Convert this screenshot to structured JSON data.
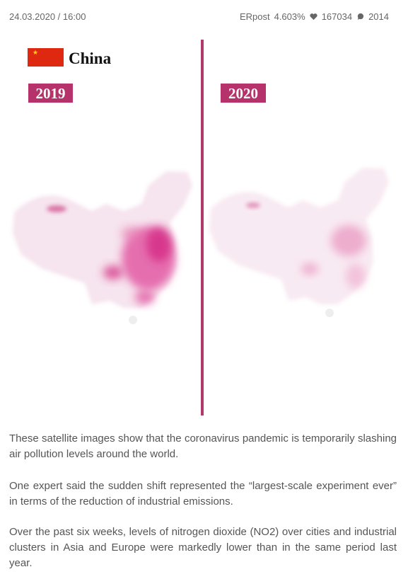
{
  "header": {
    "date": "24.03.2020 / 16:00",
    "source": "ERpost",
    "rate": "4.603%",
    "likes": "167034",
    "comments": "2014"
  },
  "image": {
    "country": "China",
    "label_left": "2019",
    "label_right": "2020"
  },
  "paragraphs": [
    "These satellite images show that the coronavirus pandemic is temporarily slashing air pollution levels around the world.",
    "One expert said the sudden shift represented the “largest-scale experiment ever” in terms of the reduction of industrial emissions.",
    "Over the past six weeks, levels of nitrogen dioxide (NO2) over cities and industrial clusters in Asia and Europe were markedly lower than in the same period last year."
  ]
}
